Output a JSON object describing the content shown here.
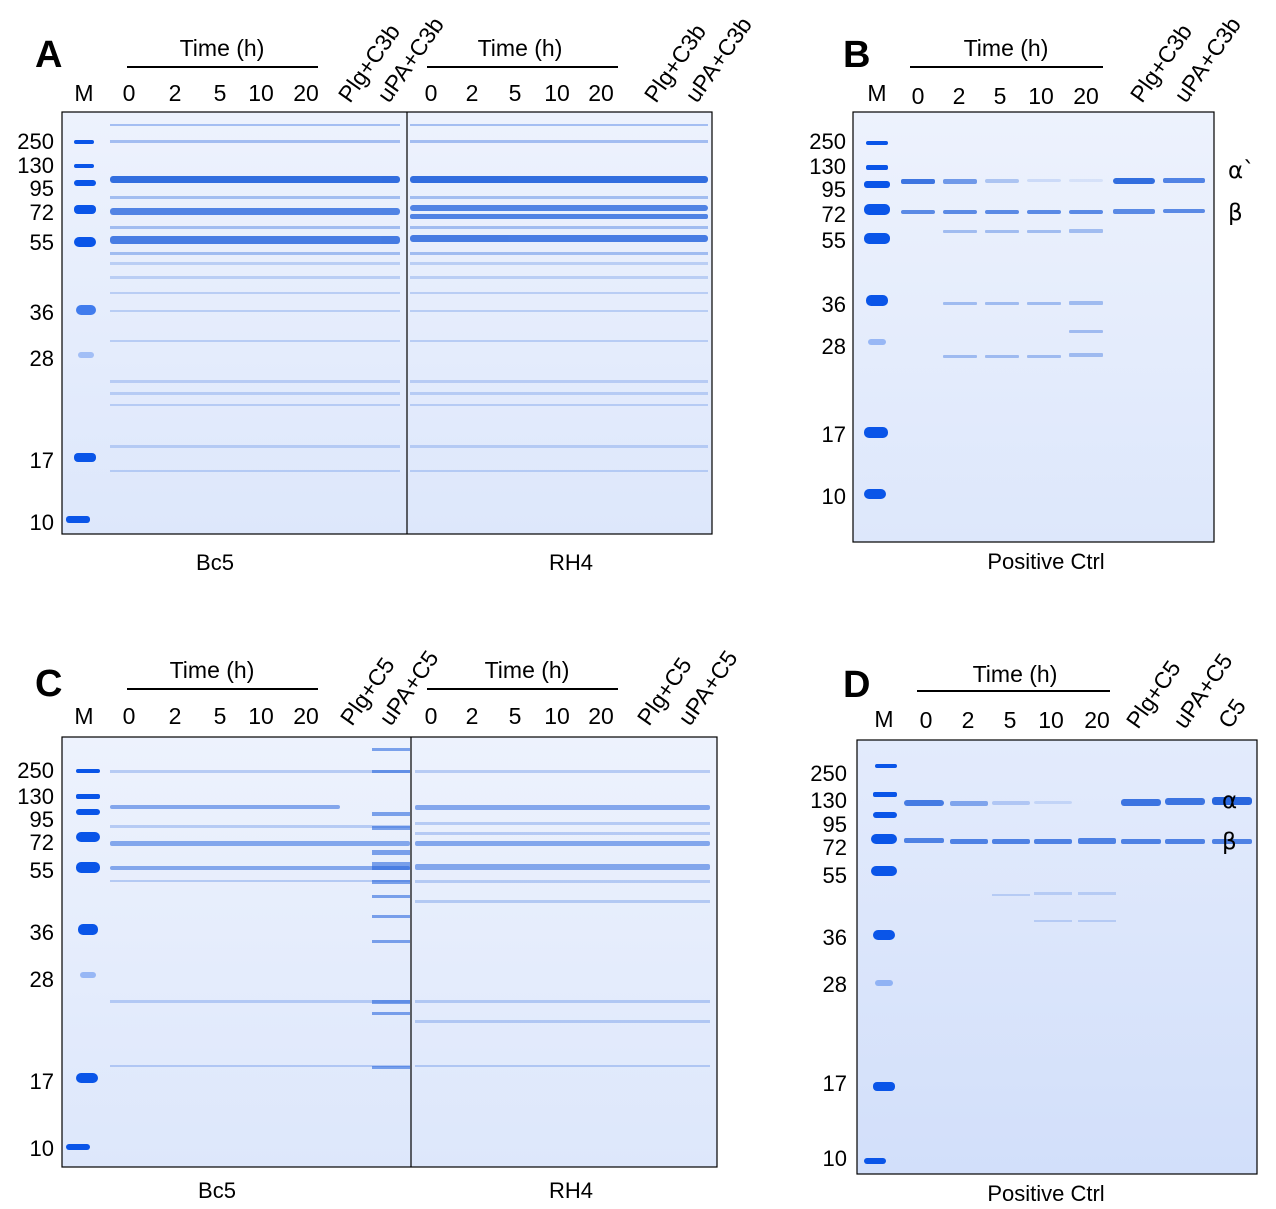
{
  "panels": [
    {
      "letter": "A",
      "marker_lane_label": "M",
      "group_caption": "Time (h)",
      "time_points": [
        "0",
        "2",
        "5",
        "10",
        "20"
      ],
      "control_lanes": [
        "Plg+C3b",
        "uPA+C3b"
      ],
      "mw_markers": [
        "250",
        "130",
        "95",
        "72",
        "55",
        "36",
        "28",
        "17",
        "10"
      ],
      "gel_captions": [
        "Bc5",
        "RH4"
      ],
      "band_labels": []
    },
    {
      "letter": "B",
      "marker_lane_label": "M",
      "group_caption": "Time (h)",
      "time_points": [
        "0",
        "2",
        "5",
        "10",
        "20"
      ],
      "control_lanes": [
        "Plg+C3b",
        "uPA+C3b"
      ],
      "mw_markers": [
        "250",
        "130",
        "95",
        "72",
        "55",
        "36",
        "28",
        "17",
        "10"
      ],
      "gel_captions": [
        "Positive Ctrl"
      ],
      "band_labels": [
        "α`",
        "β"
      ]
    },
    {
      "letter": "C",
      "marker_lane_label": "M",
      "group_caption": "Time (h)",
      "time_points": [
        "0",
        "2",
        "5",
        "10",
        "20"
      ],
      "control_lanes": [
        "Plg+C5",
        "uPA+C5"
      ],
      "mw_markers": [
        "250",
        "130",
        "95",
        "72",
        "55",
        "36",
        "28",
        "17",
        "10"
      ],
      "gel_captions": [
        "Bc5",
        "RH4"
      ],
      "band_labels": []
    },
    {
      "letter": "D",
      "marker_lane_label": "M",
      "group_caption": "Time (h)",
      "time_points": [
        "0",
        "2",
        "5",
        "10",
        "20"
      ],
      "control_lanes": [
        "Plg+C5",
        "uPA+C5",
        "C5"
      ],
      "mw_markers": [
        "250",
        "130",
        "95",
        "72",
        "55",
        "36",
        "28",
        "17",
        "10"
      ],
      "gel_captions": [
        "Positive Ctrl"
      ],
      "band_labels": [
        "α",
        "β"
      ]
    }
  ],
  "colors": {
    "gel_background": "#e6eefc",
    "band": "#1e5fdc",
    "marker_band": "#0a55e8"
  }
}
